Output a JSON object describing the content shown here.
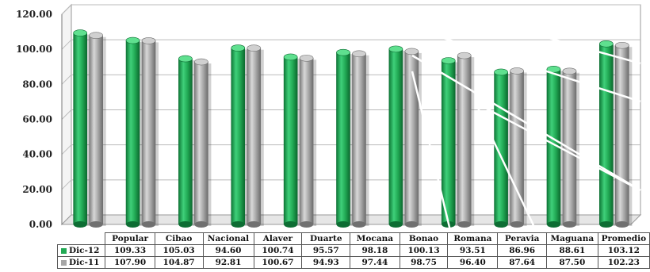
{
  "chart_data": {
    "type": "bar",
    "categories": [
      "Popular",
      "Cibao",
      "Nacional",
      "Alaver",
      "Duarte",
      "Mocana",
      "Bonao",
      "Romana",
      "Peravia",
      "Maguana",
      "Promedio"
    ],
    "series": [
      {
        "name": "Dic-12",
        "color": "#22aa55",
        "values": [
          109.33,
          105.03,
          94.6,
          100.74,
          95.57,
          98.18,
          100.13,
          93.51,
          86.96,
          88.61,
          103.12
        ],
        "labels": [
          "109.33",
          "105.03",
          "94.60",
          "100.74",
          "95.57",
          "98.18",
          "100.13",
          "93.51",
          "86.96",
          "88.61",
          "103.12"
        ]
      },
      {
        "name": "Dic-11",
        "color": "#a6a6a6",
        "values": [
          107.9,
          104.87,
          92.81,
          100.67,
          94.93,
          97.44,
          98.75,
          96.4,
          87.64,
          87.5,
          102.23
        ],
        "labels": [
          "107.90",
          "104.87",
          "92.81",
          "100.67",
          "94.93",
          "97.44",
          "98.75",
          "96.40",
          "87.64",
          "87.50",
          "102.23"
        ]
      }
    ],
    "yticks": [
      "0.00",
      "20.00",
      "40.00",
      "60.00",
      "80.00",
      "100.00",
      "120.00"
    ],
    "ylim": [
      0,
      120
    ],
    "grid": true,
    "legend": "data-table"
  }
}
